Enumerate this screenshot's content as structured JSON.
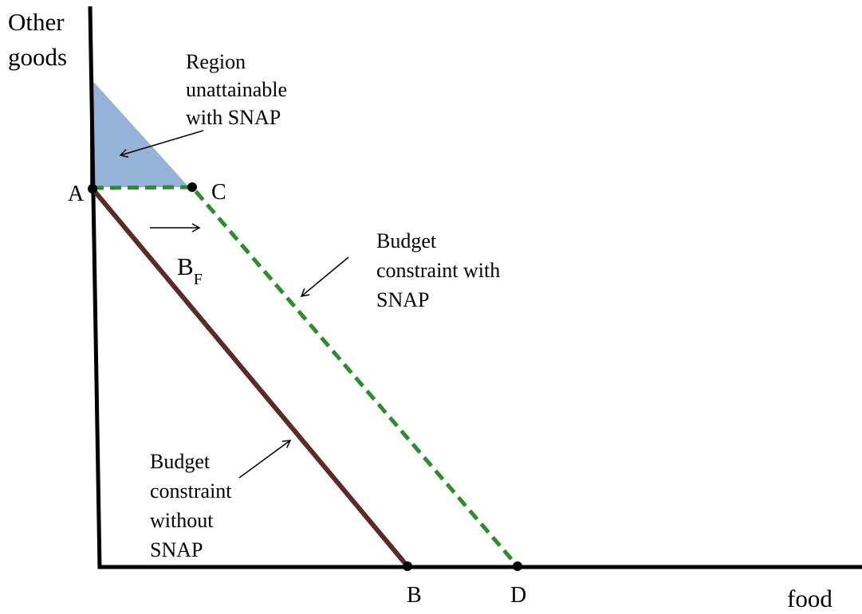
{
  "axes": {
    "y_label": [
      "Other",
      "goods"
    ],
    "x_label": "food"
  },
  "points": [
    {
      "label": "A"
    },
    {
      "label": "C"
    },
    {
      "label": "B"
    },
    {
      "label": "D"
    }
  ],
  "shift_label": {
    "main": "B",
    "sub": "F"
  },
  "annotations": [
    {
      "lines": [
        "Region",
        "unattainable",
        "with SNAP"
      ]
    },
    {
      "lines": [
        "Budget",
        "constraint with",
        "SNAP"
      ]
    },
    {
      "lines": [
        "Budget",
        "constraint",
        "without",
        "SNAP"
      ]
    }
  ]
}
